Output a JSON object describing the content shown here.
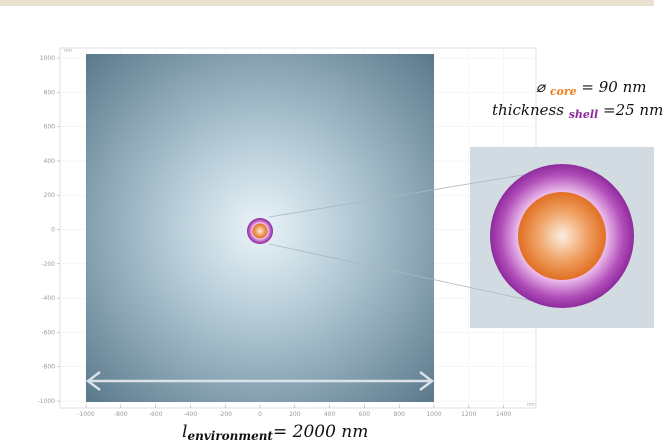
{
  "axes": {
    "x_ticks": [
      "-1000",
      "-800",
      "-600",
      "-400",
      "-200",
      "0",
      "200",
      "400",
      "600",
      "800",
      "1000",
      "1200",
      "1400"
    ],
    "y_ticks": [
      "1000",
      "800",
      "600",
      "400",
      "200",
      "0",
      "-200",
      "-400",
      "-600",
      "-800",
      "-1000"
    ],
    "unit": "nm"
  },
  "annotations": {
    "core_symbol": "⌀",
    "core_sub": "core",
    "core_value": " = 90 nm",
    "shell_word": "thickness ",
    "shell_sub": "shell",
    "shell_value": " =25 nm",
    "env_word": "l",
    "env_sub": "environment",
    "env_value": "= 2000 nm"
  },
  "colors": {
    "core": "#e8772a",
    "shell": "#9a2fa6",
    "environment": "#5a7d92",
    "inset_bg": "#d3dbe2"
  }
}
